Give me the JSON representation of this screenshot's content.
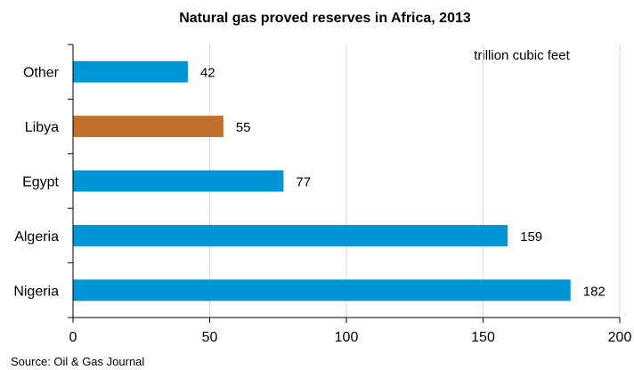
{
  "chart_data": {
    "type": "bar",
    "orientation": "horizontal",
    "title": "Natural gas proved reserves in Africa, 2013",
    "unit_label": "trillion cubic feet",
    "xlabel": "",
    "ylabel": "",
    "xlim": [
      0,
      200
    ],
    "xticks": [
      0,
      50,
      100,
      150,
      200
    ],
    "grid": true,
    "categories": [
      "Other",
      "Libya",
      "Egypt",
      "Algeria",
      "Nigeria"
    ],
    "values": [
      42,
      55,
      77,
      159,
      182
    ],
    "colors": [
      "#0096d6",
      "#c0702a",
      "#0096d6",
      "#0096d6",
      "#0096d6"
    ],
    "source": "Source: Oil & Gas Journal"
  },
  "colors": {
    "primary": "#0096d6",
    "highlight": "#c0702a",
    "grid": "#d9d9d9",
    "axis": "#000000"
  }
}
